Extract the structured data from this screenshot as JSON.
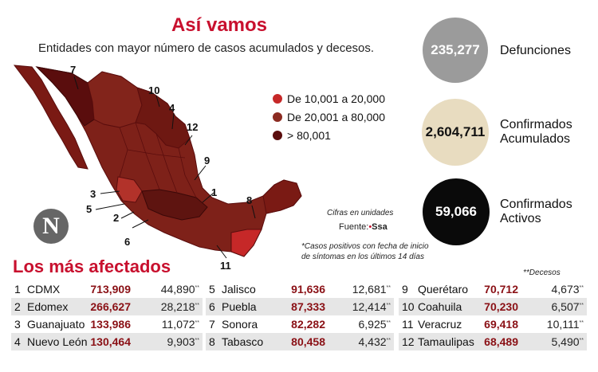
{
  "header": {
    "title": "Así vamos",
    "subtitle": "Entidades con mayor número de casos acumulados y decesos."
  },
  "legend": [
    {
      "label": "De 10,001 a 20,000",
      "color": "#c62828"
    },
    {
      "label": "De 20,001 a 80,000",
      "color": "#8c2b21"
    },
    {
      "label": "> 80,001",
      "color": "#5a0d0d"
    }
  ],
  "stats": [
    {
      "value": "235,277",
      "label": "Defunciones",
      "bg": "#9b9b9b",
      "fg": "#ffffff"
    },
    {
      "value": "2,604,711",
      "label": "Confirmados Acumulados",
      "bg": "#e8dcc0",
      "fg": "#111111"
    },
    {
      "value": "59,066",
      "label": "Confirmados Activos",
      "bg": "#0a0a0a",
      "fg": "#ffffff"
    }
  ],
  "map_labels": [
    "7",
    "10",
    "4",
    "12",
    "9",
    "3",
    "1",
    "5",
    "2",
    "8",
    "6",
    "11"
  ],
  "notes": {
    "cifras": "Cifras en unidades",
    "fuente_label": "Fuente:",
    "fuente_value": "Ssa",
    "footnote_line1": "*Casos positivos con fecha de inicio",
    "footnote_line2": "de síntomas en los últimos 14 días"
  },
  "logo_letter": "N",
  "affected": {
    "title": "Los más afectados",
    "decesos_label": "**Decesos",
    "star": "**"
  },
  "chart_data": {
    "type": "table",
    "title": "Los más afectados",
    "columns": [
      "rank",
      "state",
      "cases",
      "deaths"
    ],
    "rows": [
      {
        "rank": "1",
        "state": "CDMX",
        "cases": "713,909",
        "deaths": "44,890"
      },
      {
        "rank": "2",
        "state": "Edomex",
        "cases": "266,627",
        "deaths": "28,218"
      },
      {
        "rank": "3",
        "state": "Guanajuato",
        "cases": "133,986",
        "deaths": "11,072"
      },
      {
        "rank": "4",
        "state": "Nuevo León",
        "cases": "130,464",
        "deaths": "9,903"
      },
      {
        "rank": "5",
        "state": "Jalisco",
        "cases": "91,636",
        "deaths": "12,681"
      },
      {
        "rank": "6",
        "state": "Puebla",
        "cases": "87,333",
        "deaths": "12,414"
      },
      {
        "rank": "7",
        "state": "Sonora",
        "cases": "82,282",
        "deaths": "6,925"
      },
      {
        "rank": "8",
        "state": "Tabasco",
        "cases": "80,458",
        "deaths": "4,432"
      },
      {
        "rank": "9",
        "state": "Querétaro",
        "cases": "70,712",
        "deaths": "4,673"
      },
      {
        "rank": "10",
        "state": "Coahuila",
        "cases": "70,230",
        "deaths": "6,507"
      },
      {
        "rank": "11",
        "state": "Veracruz",
        "cases": "69,418",
        "deaths": "10,111"
      },
      {
        "rank": "12",
        "state": "Tamaulipas",
        "cases": "68,489",
        "deaths": "5,490"
      }
    ]
  }
}
